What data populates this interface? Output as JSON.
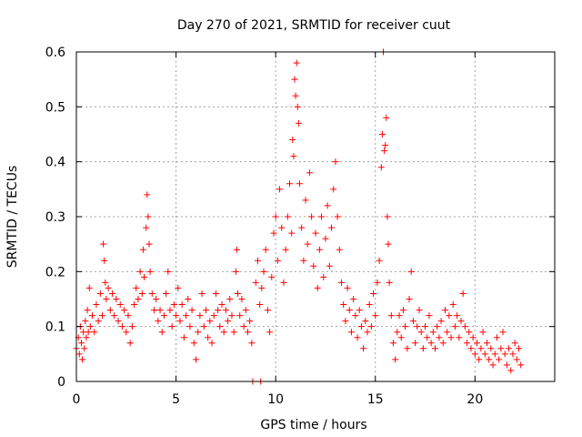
{
  "chart_data": {
    "type": "scatter",
    "title": "Day 270 of 2021, SRMTID for receiver cuut",
    "xlabel": "GPS time / hours",
    "ylabel": "SRMTID / TECUs",
    "xlim": [
      0,
      24
    ],
    "ylim": [
      0,
      0.6
    ],
    "xticks": [
      0,
      5,
      10,
      15,
      20
    ],
    "yticks": [
      0,
      0.1,
      0.2,
      0.3,
      0.4,
      0.5,
      0.6
    ],
    "xtick_labels": [
      "0",
      "5",
      "10",
      "15",
      "20"
    ],
    "ytick_labels": [
      "0",
      "0.1",
      "0.2",
      "0.3",
      "0.4",
      "0.5",
      "0.6"
    ],
    "grid": true,
    "marker": "+",
    "color": "#ff0000",
    "series": [
      {
        "name": "SRMTID",
        "points": [
          [
            0.0,
            0.06
          ],
          [
            0.1,
            0.08
          ],
          [
            0.15,
            0.05
          ],
          [
            0.2,
            0.1
          ],
          [
            0.25,
            0.07
          ],
          [
            0.3,
            0.04
          ],
          [
            0.35,
            0.09
          ],
          [
            0.4,
            0.06
          ],
          [
            0.45,
            0.11
          ],
          [
            0.5,
            0.08
          ],
          [
            0.55,
            0.13
          ],
          [
            0.6,
            0.09
          ],
          [
            0.65,
            0.17
          ],
          [
            0.7,
            0.1
          ],
          [
            0.8,
            0.12
          ],
          [
            0.9,
            0.09
          ],
          [
            1.0,
            0.14
          ],
          [
            1.1,
            0.11
          ],
          [
            1.2,
            0.16
          ],
          [
            1.3,
            0.12
          ],
          [
            1.35,
            0.25
          ],
          [
            1.4,
            0.22
          ],
          [
            1.45,
            0.18
          ],
          [
            1.5,
            0.15
          ],
          [
            1.6,
            0.17
          ],
          [
            1.7,
            0.13
          ],
          [
            1.8,
            0.16
          ],
          [
            1.9,
            0.12
          ],
          [
            2.0,
            0.15
          ],
          [
            2.1,
            0.11
          ],
          [
            2.2,
            0.14
          ],
          [
            2.3,
            0.1
          ],
          [
            2.4,
            0.13
          ],
          [
            2.5,
            0.09
          ],
          [
            2.6,
            0.12
          ],
          [
            2.7,
            0.07
          ],
          [
            2.8,
            0.1
          ],
          [
            2.9,
            0.14
          ],
          [
            3.0,
            0.17
          ],
          [
            3.1,
            0.15
          ],
          [
            3.2,
            0.2
          ],
          [
            3.3,
            0.16
          ],
          [
            3.35,
            0.24
          ],
          [
            3.4,
            0.19
          ],
          [
            3.5,
            0.28
          ],
          [
            3.55,
            0.34
          ],
          [
            3.6,
            0.3
          ],
          [
            3.65,
            0.25
          ],
          [
            3.7,
            0.2
          ],
          [
            3.8,
            0.16
          ],
          [
            3.9,
            0.13
          ],
          [
            4.0,
            0.15
          ],
          [
            4.1,
            0.11
          ],
          [
            4.2,
            0.13
          ],
          [
            4.3,
            0.09
          ],
          [
            4.4,
            0.12
          ],
          [
            4.5,
            0.16
          ],
          [
            4.6,
            0.2
          ],
          [
            4.7,
            0.13
          ],
          [
            4.8,
            0.1
          ],
          [
            4.9,
            0.14
          ],
          [
            5.0,
            0.12
          ],
          [
            5.1,
            0.17
          ],
          [
            5.2,
            0.11
          ],
          [
            5.3,
            0.14
          ],
          [
            5.4,
            0.08
          ],
          [
            5.5,
            0.12
          ],
          [
            5.6,
            0.15
          ],
          [
            5.7,
            0.1
          ],
          [
            5.8,
            0.13
          ],
          [
            5.9,
            0.07
          ],
          [
            6.0,
            0.04
          ],
          [
            6.1,
            0.09
          ],
          [
            6.2,
            0.12
          ],
          [
            6.3,
            0.16
          ],
          [
            6.4,
            0.1
          ],
          [
            6.5,
            0.13
          ],
          [
            6.6,
            0.08
          ],
          [
            6.7,
            0.11
          ],
          [
            6.8,
            0.07
          ],
          [
            6.9,
            0.12
          ],
          [
            7.0,
            0.16
          ],
          [
            7.1,
            0.13
          ],
          [
            7.2,
            0.1
          ],
          [
            7.3,
            0.14
          ],
          [
            7.4,
            0.09
          ],
          [
            7.5,
            0.13
          ],
          [
            7.6,
            0.11
          ],
          [
            7.7,
            0.15
          ],
          [
            7.8,
            0.12
          ],
          [
            7.9,
            0.09
          ],
          [
            8.0,
            0.2
          ],
          [
            8.05,
            0.24
          ],
          [
            8.1,
            0.16
          ],
          [
            8.2,
            0.12
          ],
          [
            8.3,
            0.15
          ],
          [
            8.4,
            0.1
          ],
          [
            8.5,
            0.13
          ],
          [
            8.6,
            0.09
          ],
          [
            8.7,
            0.11
          ],
          [
            8.8,
            0.07
          ],
          [
            8.85,
            0.0
          ],
          [
            9.0,
            0.18
          ],
          [
            9.1,
            0.22
          ],
          [
            9.2,
            0.14
          ],
          [
            9.25,
            0.0
          ],
          [
            9.3,
            0.17
          ],
          [
            9.4,
            0.2
          ],
          [
            9.5,
            0.24
          ],
          [
            9.6,
            0.13
          ],
          [
            9.7,
            0.09
          ],
          [
            9.8,
            0.19
          ],
          [
            9.9,
            0.27
          ],
          [
            10.0,
            0.3
          ],
          [
            10.1,
            0.22
          ],
          [
            10.2,
            0.35
          ],
          [
            10.3,
            0.28
          ],
          [
            10.4,
            0.18
          ],
          [
            10.5,
            0.24
          ],
          [
            10.6,
            0.3
          ],
          [
            10.7,
            0.36
          ],
          [
            10.8,
            0.27
          ],
          [
            10.85,
            0.44
          ],
          [
            10.9,
            0.41
          ],
          [
            10.95,
            0.55
          ],
          [
            11.0,
            0.52
          ],
          [
            11.05,
            0.58
          ],
          [
            11.1,
            0.5
          ],
          [
            11.15,
            0.47
          ],
          [
            11.2,
            0.36
          ],
          [
            11.3,
            0.28
          ],
          [
            11.4,
            0.22
          ],
          [
            11.5,
            0.33
          ],
          [
            11.6,
            0.25
          ],
          [
            11.7,
            0.38
          ],
          [
            11.8,
            0.3
          ],
          [
            11.9,
            0.21
          ],
          [
            12.0,
            0.27
          ],
          [
            12.1,
            0.17
          ],
          [
            12.2,
            0.24
          ],
          [
            12.3,
            0.3
          ],
          [
            12.4,
            0.19
          ],
          [
            12.5,
            0.26
          ],
          [
            12.6,
            0.32
          ],
          [
            12.7,
            0.21
          ],
          [
            12.8,
            0.28
          ],
          [
            12.9,
            0.35
          ],
          [
            13.0,
            0.4
          ],
          [
            13.1,
            0.3
          ],
          [
            13.2,
            0.24
          ],
          [
            13.3,
            0.18
          ],
          [
            13.4,
            0.14
          ],
          [
            13.5,
            0.11
          ],
          [
            13.6,
            0.17
          ],
          [
            13.7,
            0.13
          ],
          [
            13.8,
            0.09
          ],
          [
            13.9,
            0.15
          ],
          [
            14.0,
            0.12
          ],
          [
            14.1,
            0.08
          ],
          [
            14.2,
            0.13
          ],
          [
            14.3,
            0.1
          ],
          [
            14.4,
            0.06
          ],
          [
            14.5,
            0.11
          ],
          [
            14.6,
            0.09
          ],
          [
            14.7,
            0.14
          ],
          [
            14.8,
            0.1
          ],
          [
            14.9,
            0.16
          ],
          [
            15.0,
            0.12
          ],
          [
            15.1,
            0.18
          ],
          [
            15.2,
            0.22
          ],
          [
            15.3,
            0.39
          ],
          [
            15.35,
            0.45
          ],
          [
            15.4,
            0.6
          ],
          [
            15.45,
            0.42
          ],
          [
            15.5,
            0.43
          ],
          [
            15.55,
            0.48
          ],
          [
            15.6,
            0.3
          ],
          [
            15.65,
            0.25
          ],
          [
            15.7,
            0.18
          ],
          [
            15.8,
            0.12
          ],
          [
            15.9,
            0.07
          ],
          [
            16.0,
            0.04
          ],
          [
            16.1,
            0.09
          ],
          [
            16.2,
            0.12
          ],
          [
            16.3,
            0.08
          ],
          [
            16.4,
            0.13
          ],
          [
            16.5,
            0.1
          ],
          [
            16.6,
            0.06
          ],
          [
            16.7,
            0.15
          ],
          [
            16.8,
            0.2
          ],
          [
            16.9,
            0.11
          ],
          [
            17.0,
            0.07
          ],
          [
            17.1,
            0.1
          ],
          [
            17.2,
            0.13
          ],
          [
            17.3,
            0.09
          ],
          [
            17.4,
            0.06
          ],
          [
            17.5,
            0.1
          ],
          [
            17.6,
            0.08
          ],
          [
            17.7,
            0.12
          ],
          [
            17.8,
            0.07
          ],
          [
            17.9,
            0.09
          ],
          [
            18.0,
            0.06
          ],
          [
            18.1,
            0.1
          ],
          [
            18.2,
            0.08
          ],
          [
            18.3,
            0.11
          ],
          [
            18.4,
            0.07
          ],
          [
            18.5,
            0.13
          ],
          [
            18.6,
            0.09
          ],
          [
            18.7,
            0.12
          ],
          [
            18.8,
            0.08
          ],
          [
            18.9,
            0.14
          ],
          [
            19.0,
            0.1
          ],
          [
            19.1,
            0.12
          ],
          [
            19.2,
            0.08
          ],
          [
            19.3,
            0.11
          ],
          [
            19.4,
            0.16
          ],
          [
            19.5,
            0.1
          ],
          [
            19.6,
            0.07
          ],
          [
            19.7,
            0.09
          ],
          [
            19.8,
            0.06
          ],
          [
            19.9,
            0.08
          ],
          [
            20.0,
            0.05
          ],
          [
            20.1,
            0.07
          ],
          [
            20.2,
            0.04
          ],
          [
            20.3,
            0.06
          ],
          [
            20.4,
            0.09
          ],
          [
            20.5,
            0.05
          ],
          [
            20.6,
            0.07
          ],
          [
            20.7,
            0.04
          ],
          [
            20.8,
            0.06
          ],
          [
            20.9,
            0.03
          ],
          [
            21.0,
            0.05
          ],
          [
            21.1,
            0.08
          ],
          [
            21.2,
            0.04
          ],
          [
            21.3,
            0.06
          ],
          [
            21.4,
            0.09
          ],
          [
            21.5,
            0.05
          ],
          [
            21.6,
            0.03
          ],
          [
            21.7,
            0.06
          ],
          [
            21.8,
            0.02
          ],
          [
            21.9,
            0.05
          ],
          [
            22.0,
            0.07
          ],
          [
            22.1,
            0.04
          ],
          [
            22.2,
            0.06
          ],
          [
            22.3,
            0.03
          ]
        ]
      }
    ]
  }
}
